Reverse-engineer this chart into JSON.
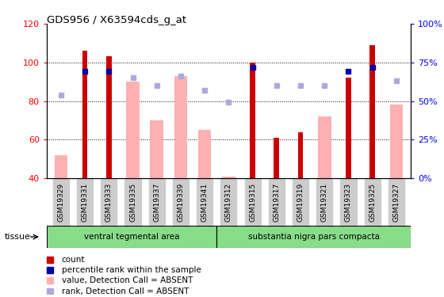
{
  "title": "GDS956 / X63594cds_g_at",
  "categories": [
    "GSM19329",
    "GSM19331",
    "GSM19333",
    "GSM19335",
    "GSM19337",
    "GSM19339",
    "GSM19341",
    "GSM19312",
    "GSM19315",
    "GSM19317",
    "GSM19319",
    "GSM19321",
    "GSM19323",
    "GSM19325",
    "GSM19327"
  ],
  "group1_label": "ventral tegmental area",
  "group2_label": "substantia nigra pars compacta",
  "group1_count": 7,
  "ylim_left": [
    40,
    120
  ],
  "ylim_right": [
    0,
    100
  ],
  "yticks_left": [
    40,
    60,
    80,
    100,
    120
  ],
  "yticks_right": [
    0,
    25,
    50,
    75,
    100
  ],
  "red_bar_values": [
    null,
    106,
    103,
    null,
    null,
    null,
    null,
    null,
    100,
    61,
    64,
    null,
    92,
    109,
    null
  ],
  "pink_bar_values": [
    52,
    null,
    null,
    90,
    70,
    93,
    65,
    41,
    null,
    null,
    null,
    72,
    null,
    null,
    78
  ],
  "blue_square_pct": [
    null,
    69,
    69,
    null,
    null,
    null,
    null,
    null,
    72,
    null,
    null,
    null,
    69,
    72,
    null
  ],
  "lightblue_square_pct": [
    54,
    null,
    null,
    65,
    60,
    66,
    57,
    49,
    null,
    60,
    60,
    60,
    null,
    null,
    63
  ],
  "red_color": "#cc0000",
  "pink_color": "#ffb0b0",
  "blue_color": "#0000aa",
  "lightblue_color": "#aaaadd",
  "tissue_bg": "#88dd88",
  "xticklabel_bg": "#cccccc",
  "legend_items": [
    {
      "label": "count",
      "color": "#cc0000"
    },
    {
      "label": "percentile rank within the sample",
      "color": "#0000aa"
    },
    {
      "label": "value, Detection Call = ABSENT",
      "color": "#ffb0b0"
    },
    {
      "label": "rank, Detection Call = ABSENT",
      "color": "#aaaadd"
    }
  ]
}
